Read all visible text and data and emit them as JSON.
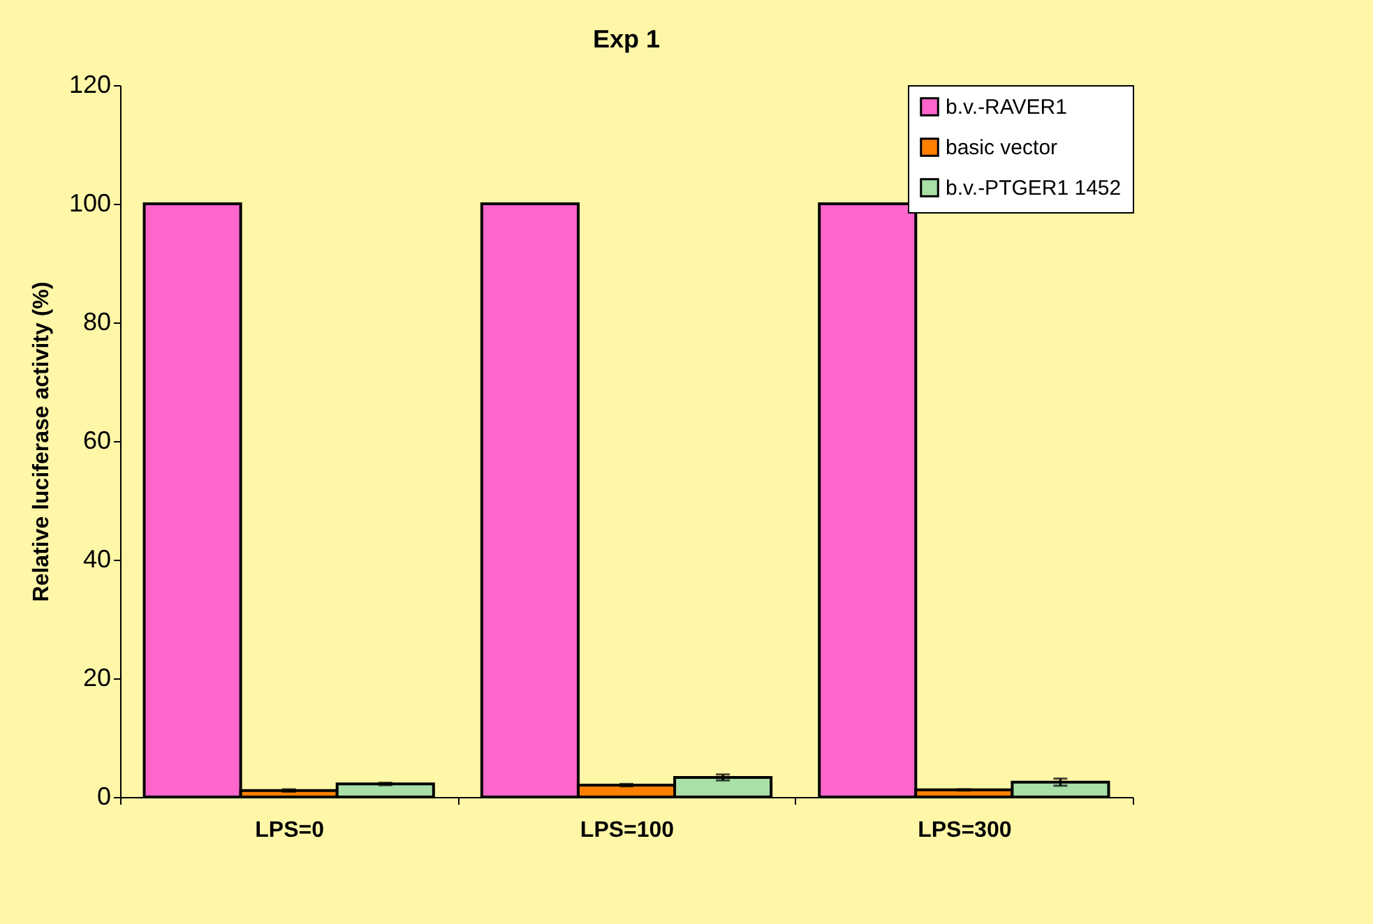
{
  "chart_data": {
    "type": "bar",
    "title": "Exp 1",
    "ylabel": "Relative luciferase activity  (%)",
    "categories": [
      "LPS=0",
      "LPS=100",
      "LPS=300"
    ],
    "series": [
      {
        "name": "b.v.-RAVER1",
        "color": "#ff66cc",
        "values": [
          100,
          100,
          100
        ]
      },
      {
        "name": "basic vector",
        "color": "#ff8000",
        "values": [
          1.1,
          2.0,
          1.2
        ],
        "errors": [
          0.2,
          0.2,
          0.1
        ]
      },
      {
        "name": "b.v.-PTGER1 1452",
        "color": "#a8e0a8",
        "values": [
          2.2,
          3.3,
          2.5
        ],
        "errors": [
          0.2,
          0.5,
          0.6
        ]
      }
    ],
    "ylim": [
      0,
      120
    ],
    "yticks": [
      0,
      20,
      40,
      60,
      80,
      100,
      120
    ],
    "grid": false,
    "legend": "top right"
  }
}
